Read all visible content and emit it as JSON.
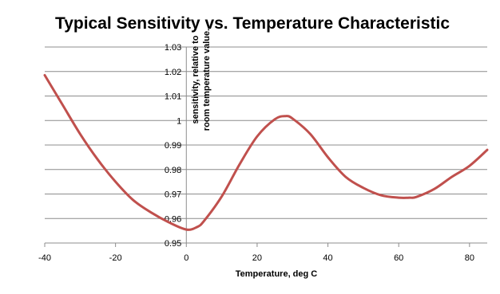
{
  "chart_data": {
    "type": "line",
    "title": "Typical Sensitivity vs. Temperature Characteristic",
    "xlabel": "Temperature, deg C",
    "ylabel_lines": [
      "sensitivity, relative to",
      "room temperature value."
    ],
    "xlim": [
      -40,
      85
    ],
    "ylim": [
      0.95,
      1.03
    ],
    "x_ticks": [
      "-40",
      "-20",
      "0",
      "20",
      "40",
      "60",
      "80"
    ],
    "y_ticks": [
      "0.95",
      "0.96",
      "0.97",
      "0.98",
      "0.99",
      "1",
      "1.01",
      "1.02",
      "1.03"
    ],
    "grid": true,
    "legend": "none",
    "series_color": "#C0504D",
    "series": [
      {
        "x": [
          -40,
          -35,
          -30,
          -25,
          -20,
          -15,
          -10,
          -5,
          0,
          3,
          5,
          10,
          15,
          20,
          25,
          28,
          30,
          35,
          40,
          45,
          50,
          55,
          60,
          63,
          65,
          70,
          75,
          80,
          85
        ],
        "y": [
          1.0185,
          1.0065,
          0.9945,
          0.984,
          0.975,
          0.9675,
          0.9625,
          0.9585,
          0.9555,
          0.9565,
          0.959,
          0.969,
          0.982,
          0.9935,
          1.0005,
          1.0018,
          1.0008,
          0.9945,
          0.985,
          0.977,
          0.9725,
          0.9695,
          0.9685,
          0.9685,
          0.9688,
          0.972,
          0.977,
          0.9815,
          0.988
        ]
      }
    ]
  }
}
